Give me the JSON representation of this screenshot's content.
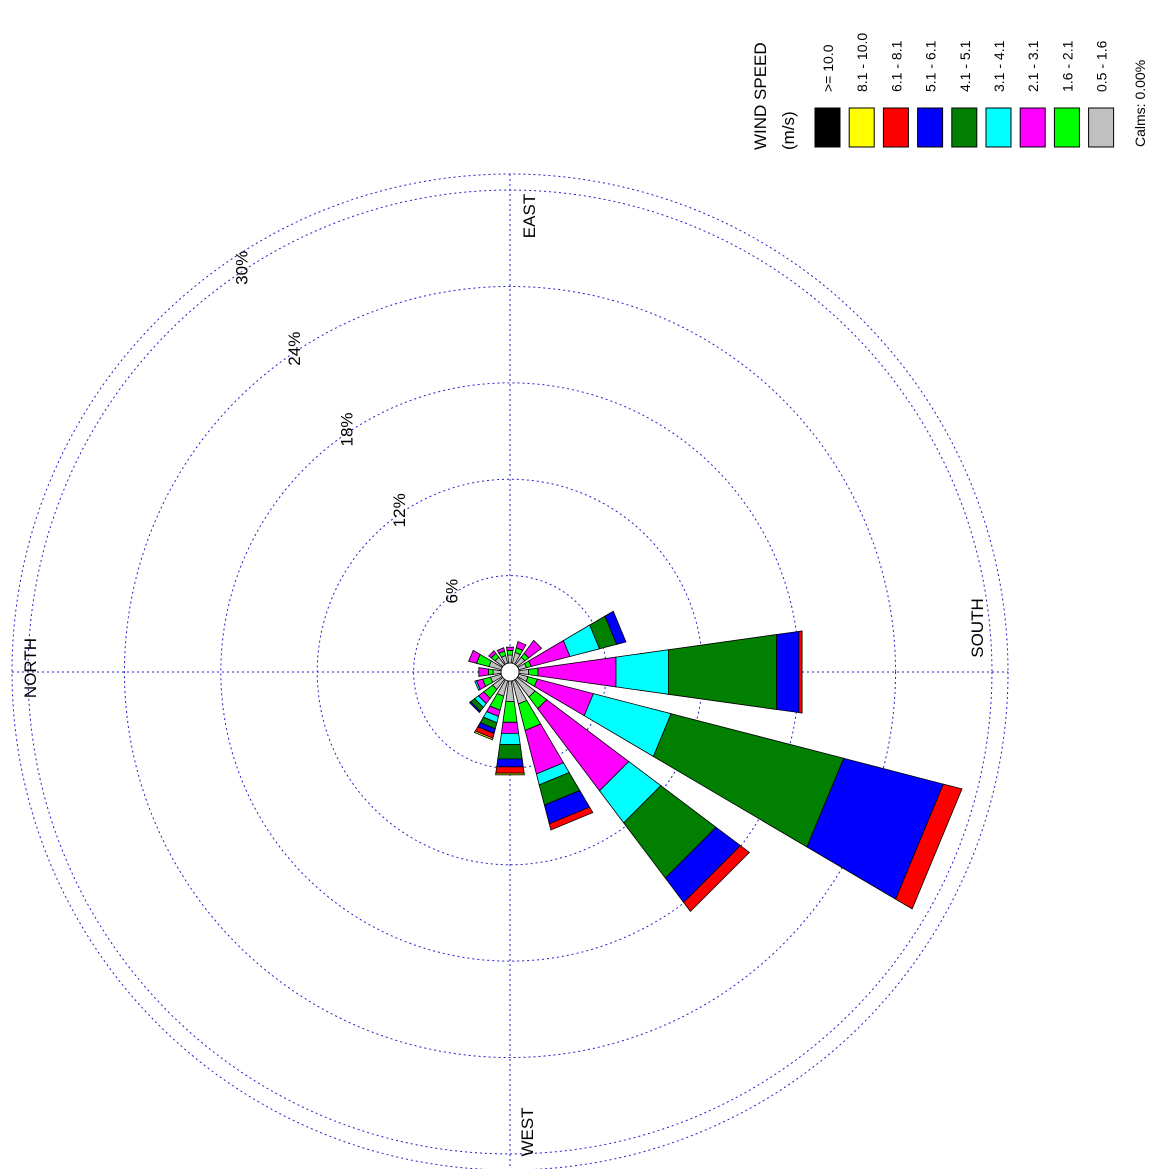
{
  "chart_data": {
    "type": "windrose",
    "orientation": "rotated 90 degrees counter-clockwise (north on the left, south on the right, east at top, west at bottom)",
    "directions": [
      "N",
      "NNE",
      "NE",
      "ENE",
      "E",
      "ESE",
      "SE",
      "SSE",
      "S",
      "SSW",
      "SW",
      "WSW",
      "W",
      "WNW",
      "NW",
      "NNW"
    ],
    "compass_labels": {
      "north": "NORTH",
      "east": "EAST",
      "south": "SOUTH",
      "west": "WEST"
    },
    "ring_values": [
      6,
      12,
      18,
      24,
      30
    ],
    "ring_labels": [
      "6%",
      "12%",
      "18%",
      "24%",
      "30%"
    ],
    "rmax": 31,
    "legend": {
      "title_line1": "WIND SPEED",
      "title_line2": "(m/s)",
      "calms": "Calms: 0.00%",
      "bins": [
        {
          "label": ">= 10.0",
          "color": "#000000"
        },
        {
          "label": "8.1 - 10.0",
          "color": "#ffff00"
        },
        {
          "label": "6.1 - 8.1",
          "color": "#ff0000"
        },
        {
          "label": "5.1 - 6.1",
          "color": "#0000ff"
        },
        {
          "label": "4.1 - 5.1",
          "color": "#007f00"
        },
        {
          "label": "3.1 - 4.1",
          "color": "#00ffff"
        },
        {
          "label": "2.1 - 3.1",
          "color": "#ff00ff"
        },
        {
          "label": "1.6 - 2.1",
          "color": "#00ff00"
        },
        {
          "label": "0.5 - 1.6",
          "color": "#c0c0c0"
        }
      ]
    },
    "series_order_inner_to_outer": [
      "0.5 - 1.6",
      "1.6 - 2.1",
      "2.1 - 3.1",
      "3.1 - 4.1",
      "4.1 - 5.1",
      "5.1 - 6.1",
      "6.1 - 8.1",
      "8.1 - 10.0",
      ">= 10.0"
    ],
    "cumulative_percent": {
      "N": [
        0.5,
        0.8,
        1.4,
        1.4,
        1.4,
        1.4,
        1.4,
        1.4,
        1.4
      ],
      "NNE": [
        0.7,
        1.2,
        1.6,
        1.7,
        1.7,
        1.7,
        1.7,
        1.7,
        1.7
      ],
      "NE": [
        0.8,
        1.5,
        1.9,
        2.2,
        2.5,
        2.6,
        2.6,
        2.6,
        2.6
      ],
      "ENE": [
        1.0,
        1.9,
        2.3,
        2.7,
        3.1,
        3.4,
        3.7,
        3.8,
        3.8
      ],
      "E": [
        1.3,
        2.6,
        3.3,
        4.0,
        4.9,
        5.4,
        5.8,
        5.9,
        5.9
      ],
      "ESE": [
        1.5,
        3.2,
        6.0,
        6.7,
        8.0,
        9.2,
        9.6,
        9.6,
        9.6
      ],
      "SE": [
        1.4,
        2.3,
        8.7,
        11.2,
        15.5,
        17.4,
        18.1,
        18.1,
        18.1
      ],
      "SSE": [
        0.6,
        1.2,
        4.8,
        9.8,
        20.9,
        27.3,
        28.5,
        28.5,
        28.5
      ],
      "S": [
        0.6,
        1.2,
        6.1,
        9.4,
        16.2,
        17.6,
        17.8,
        17.8,
        17.8
      ],
      "SSW": [
        0.5,
        0.8,
        3.3,
        5.2,
        6.3,
        6.9,
        6.9,
        6.9,
        6.9
      ],
      "SW": [
        0.6,
        0.9,
        1.9,
        1.9,
        1.9,
        1.9,
        1.9,
        1.9,
        1.9
      ],
      "WSW": [
        0.7,
        1.0,
        1.4,
        1.4,
        1.4,
        1.4,
        1.4,
        1.4,
        1.4
      ],
      "W": [
        0.5,
        0.8,
        1.0,
        1.0,
        1.0,
        1.0,
        1.0,
        1.0,
        1.0
      ],
      "WNW": [
        0.5,
        0.8,
        1.0,
        1.0,
        1.0,
        1.0,
        1.0,
        1.0,
        1.0
      ],
      "NW": [
        0.6,
        0.9,
        1.1,
        1.1,
        1.1,
        1.1,
        1.1,
        1.1,
        1.1
      ],
      "NNW": [
        0.8,
        1.6,
        2.1,
        2.1,
        2.1,
        2.1,
        2.1,
        2.1,
        2.1
      ]
    }
  }
}
